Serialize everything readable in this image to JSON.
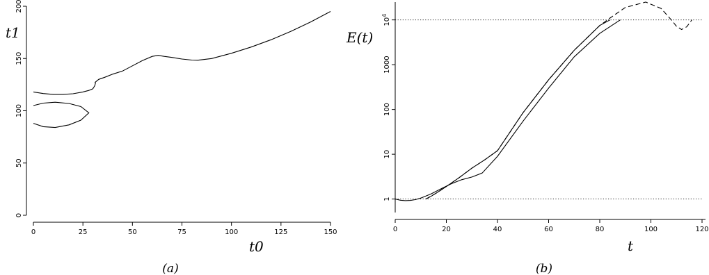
{
  "chart_data": [
    {
      "type": "line",
      "panel_label": "(a)",
      "xlabel": "t0",
      "ylabel": "t1",
      "xlim": [
        0,
        150
      ],
      "ylim": [
        0,
        200
      ],
      "x_ticks": [
        0,
        25,
        50,
        75,
        100,
        125,
        150
      ],
      "y_ticks": [
        0,
        50,
        100,
        150,
        200
      ],
      "grid": false,
      "series": [
        {
          "x": [
            31,
            33,
            36,
            40,
            45,
            50,
            55,
            60,
            63,
            66,
            70,
            75,
            80,
            83,
            90,
            100,
            110,
            120,
            130,
            140,
            150
          ],
          "y": [
            127,
            130,
            132,
            135,
            138,
            143,
            148,
            152,
            153,
            152,
            151,
            149.5,
            148.5,
            148.4,
            150,
            155,
            161,
            168,
            176,
            185,
            195
          ]
        },
        {
          "x": [
            0,
            5,
            10,
            15,
            20,
            25,
            28,
            30,
            31,
            31.4
          ],
          "y": [
            118,
            116.5,
            115.7,
            115.7,
            116.3,
            118,
            119.5,
            121,
            124,
            127
          ]
        },
        {
          "x": [
            0,
            5,
            11,
            18,
            24,
            28,
            24,
            18,
            11,
            5,
            0
          ],
          "y": [
            105,
            107.3,
            108.2,
            107,
            104,
            98,
            91,
            86.5,
            84,
            84.8,
            88
          ]
        }
      ]
    },
    {
      "type": "line",
      "panel_label": "(b)",
      "xlabel": "t",
      "ylabel": "E(t)",
      "y_scale": "log",
      "xlim": [
        0,
        120
      ],
      "ylim": [
        0.5,
        25000
      ],
      "x_ticks": [
        0,
        20,
        40,
        60,
        80,
        100,
        120
      ],
      "y_ticks": [
        1,
        10,
        100,
        1000,
        10000
      ],
      "y_tick_labels": [
        "1",
        "10",
        "100",
        "1000",
        "10^4"
      ],
      "grid": false,
      "reference_lines": [
        1,
        10000
      ],
      "series": [
        {
          "style": "solid",
          "x": [
            0,
            2,
            4,
            6,
            8,
            10,
            14,
            18,
            22,
            26,
            30,
            34,
            40,
            50,
            60,
            70,
            80,
            88
          ],
          "y": [
            1,
            0.94,
            0.92,
            0.93,
            0.97,
            1.05,
            1.3,
            1.7,
            2.2,
            2.7,
            3.1,
            3.8,
            9,
            55,
            300,
            1500,
            5000,
            10000
          ]
        },
        {
          "style": "solid",
          "x": [
            12,
            14,
            16,
            20,
            25,
            30,
            35,
            40,
            50,
            60,
            70,
            80,
            84
          ],
          "y": [
            1,
            1.15,
            1.35,
            1.9,
            3,
            4.9,
            7.5,
            12,
            85,
            460,
            2100,
            7500,
            10000
          ]
        },
        {
          "style": "dashed",
          "x": [
            12,
            16,
            20,
            25,
            30,
            35,
            40,
            50,
            60,
            70,
            80,
            84,
            90,
            98,
            104,
            108,
            110,
            112,
            114,
            116
          ],
          "y": [
            1,
            1.35,
            1.9,
            3,
            4.9,
            7.5,
            12,
            85,
            460,
            2100,
            7500,
            11000,
            19000,
            25000,
            18000,
            10000,
            7200,
            6100,
            7000,
            10000
          ]
        }
      ]
    }
  ]
}
